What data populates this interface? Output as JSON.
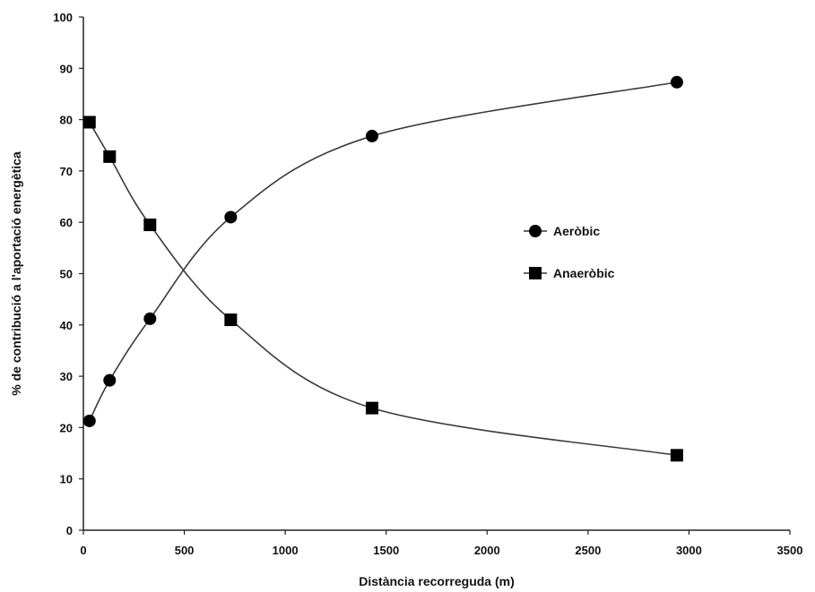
{
  "chart_data": {
    "type": "line",
    "title": "",
    "xlabel": "Distància recorreguda (m)",
    "ylabel": "% de contribució a l'aportació energètica",
    "xlim": [
      0,
      3500
    ],
    "ylim": [
      0,
      100
    ],
    "xticks": [
      0,
      500,
      1000,
      1500,
      2000,
      2500,
      3000,
      3500
    ],
    "xtick_labels": [
      "0",
      "500",
      "1000",
      "1500",
      "2000",
      "2500",
      "3000",
      "3500"
    ],
    "yticks": [
      0,
      10,
      20,
      30,
      40,
      50,
      60,
      70,
      80,
      90,
      100
    ],
    "ytick_labels": [
      "0",
      "10",
      "20",
      "30",
      "40",
      "50",
      "60",
      "70",
      "80",
      "90",
      "100"
    ],
    "grid": false,
    "legend_position": "center-right",
    "series": [
      {
        "name": "Aeròbic",
        "marker": "circle",
        "color": "#000000",
        "x": [
          30,
          130,
          330,
          730,
          1430,
          2940
        ],
        "y": [
          21.3,
          29.2,
          41.2,
          61.0,
          76.8,
          87.3
        ]
      },
      {
        "name": "Anaeròbic",
        "marker": "square",
        "color": "#000000",
        "x": [
          30,
          130,
          330,
          730,
          1430,
          2940
        ],
        "y": [
          79.5,
          72.8,
          59.5,
          41.0,
          23.8,
          14.6
        ]
      }
    ]
  }
}
